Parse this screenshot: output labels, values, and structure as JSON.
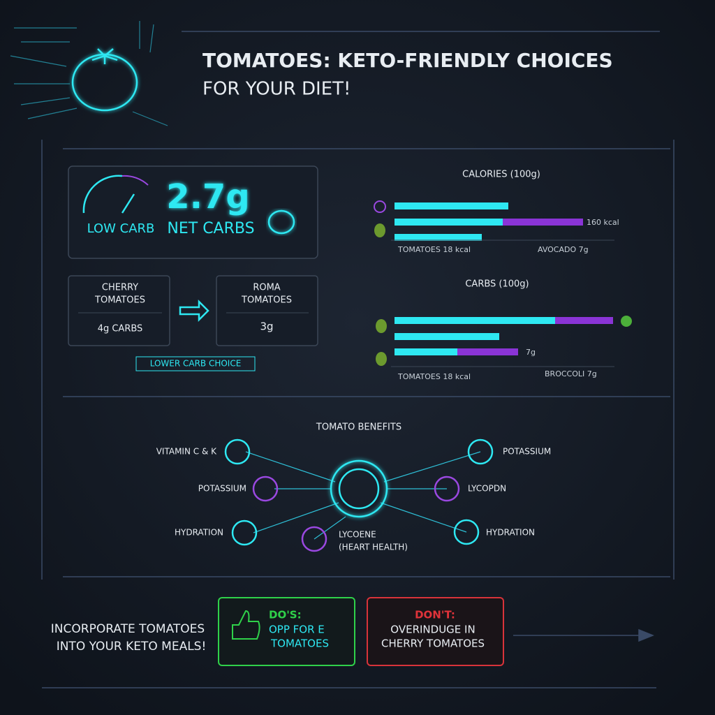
{
  "header": {
    "title": "TOMATOES: KETO-FRIENDLY CHOICES",
    "subtitle": "FOR YOUR DIET!"
  },
  "net_carbs": {
    "gauge_label": "LOW CARB",
    "value": "2.7g",
    "label": "NET CARBS"
  },
  "comparison": {
    "cherry": {
      "name": [
        "CHERRY",
        "TOMATOES"
      ],
      "carbs": "4g CARBS"
    },
    "roma": {
      "name": [
        "ROMA",
        "TOMATOES"
      ],
      "carbs": "3g"
    },
    "badge": "LOWER CARB CHOICE"
  },
  "calories": {
    "title": "CALORIES (100g)",
    "bar_label": "160 kcal",
    "footer": [
      "TOMATOES 18 kcal",
      "AVOCADO 7g"
    ]
  },
  "carbs": {
    "title": "CARBS (100g)",
    "bar_label": "7g",
    "footer": [
      "TOMATOES 18 kcal",
      "BROCCOLI 7g"
    ]
  },
  "benefits": {
    "title": "TOMATO BENEFITS",
    "left": [
      "VITAMIN C & K",
      "POTASSIUM",
      "HYDRATION"
    ],
    "bottom": [
      "LYCOENE",
      "(HEART HEALTH)"
    ],
    "right": [
      "POTASSIUM",
      "LYCOPDN",
      "HYDRATION"
    ]
  },
  "footer": {
    "cta": [
      "INCORPORATE TOMATOES",
      "INTO YOUR KETO MEALS!"
    ],
    "dos": {
      "heading": "DO'S:",
      "lines": [
        "OPP FOR E",
        "TOMATOES"
      ]
    },
    "donts": {
      "heading": "DON'T:",
      "lines": [
        "OVERINDUGE IN",
        "CHERRY TOMATOES"
      ]
    }
  }
}
